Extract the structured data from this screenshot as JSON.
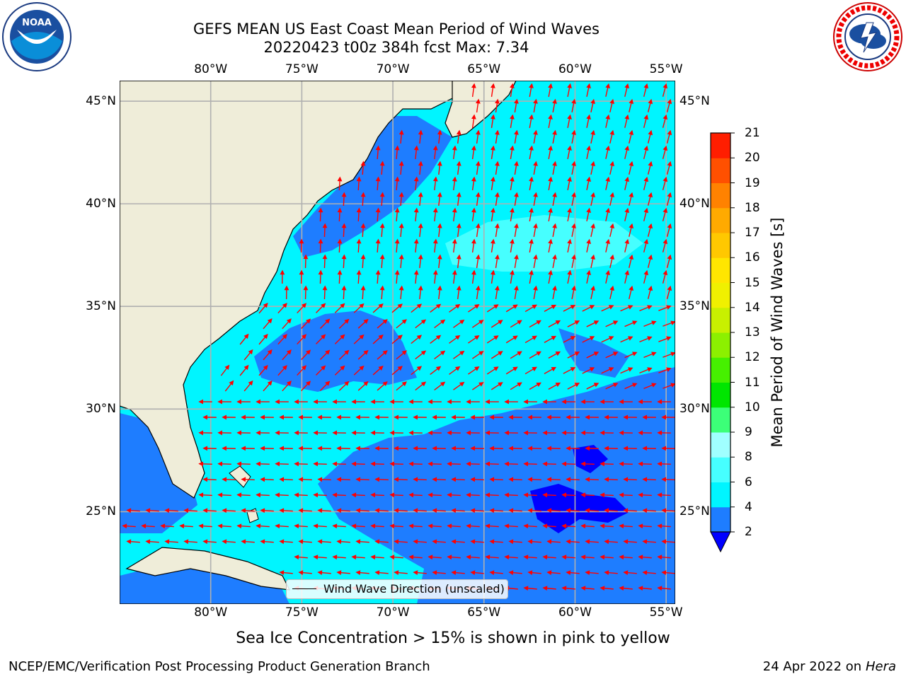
{
  "title": {
    "line1": "GEFS MEAN US East Coast Mean Period of Wind Waves",
    "line2": "20220423 t00z 384h fcst   Max: 7.34"
  },
  "map": {
    "lon_range": [
      -85,
      -54.5
    ],
    "lat_range": [
      20.5,
      46
    ],
    "lon_ticks": [
      "80°W",
      "75°W",
      "70°W",
      "65°W",
      "60°W",
      "55°W"
    ],
    "lat_ticks": [
      "45°N",
      "40°N",
      "35°N",
      "30°N",
      "25°N"
    ],
    "gridlines": true
  },
  "legend": {
    "label": "Wind Wave Direction (unscaled)"
  },
  "colorbar": {
    "title": "Mean Period of Wind Waves [s]",
    "levels": [
      "2",
      "4",
      "6",
      "8",
      "9",
      "10",
      "11",
      "12",
      "13",
      "14",
      "15",
      "16",
      "17",
      "18",
      "19",
      "20",
      "21"
    ],
    "colors": [
      "#1e7dff",
      "#00f5ff",
      "#46ffff",
      "#a0ffff",
      "#3cff78",
      "#00e600",
      "#46f000",
      "#8cf000",
      "#c8f000",
      "#f0f000",
      "#ffe600",
      "#ffc800",
      "#ffaa00",
      "#ff8200",
      "#ff5000",
      "#ff1e00"
    ],
    "extend_color": "#0000ff"
  },
  "colors": {
    "land": "#efedd9",
    "wave_low": "#1e7dff",
    "wave_mid": "#00f5ff",
    "wave_high": "#46ffff",
    "wave_min": "#0000ff",
    "arrow": "#ff0000"
  },
  "note": "Sea Ice Concentration > 15% is shown in pink to yellow",
  "footer": {
    "left": "NCEP/EMC/Verification Post Processing Product Generation Branch",
    "right_date": "24 Apr 2022 on ",
    "right_host": "Hera"
  }
}
